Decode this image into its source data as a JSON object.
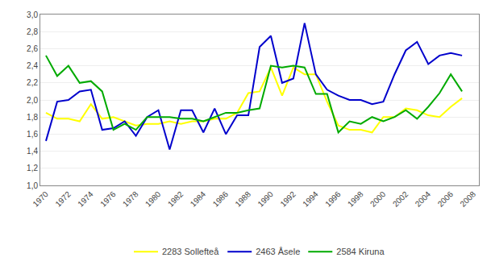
{
  "chart_data": {
    "type": "line",
    "x": [
      1970,
      1971,
      1972,
      1973,
      1974,
      1975,
      1976,
      1977,
      1978,
      1979,
      1980,
      1981,
      1982,
      1983,
      1984,
      1985,
      1986,
      1987,
      1988,
      1989,
      1990,
      1991,
      1992,
      1993,
      1994,
      1995,
      1996,
      1997,
      1998,
      1999,
      2000,
      2001,
      2002,
      2003,
      2004,
      2005,
      2006,
      2007
    ],
    "series": [
      {
        "name": "2283 Sollefteå",
        "color": "#ffff00",
        "values": [
          1.85,
          1.78,
          1.78,
          1.75,
          1.95,
          1.78,
          1.8,
          1.75,
          1.7,
          1.72,
          1.72,
          1.75,
          1.72,
          1.75,
          1.75,
          1.78,
          1.78,
          1.85,
          2.08,
          2.1,
          2.38,
          2.05,
          2.38,
          2.3,
          2.3,
          1.98,
          1.7,
          1.65,
          1.65,
          1.62,
          1.8,
          1.8,
          1.9,
          1.88,
          1.82,
          1.8,
          1.92,
          2.02
        ]
      },
      {
        "name": "2463 Åsele",
        "color": "#0000cc",
        "values": [
          1.52,
          1.98,
          2.0,
          2.1,
          2.12,
          1.65,
          1.67,
          1.75,
          1.58,
          1.8,
          1.88,
          1.42,
          1.88,
          1.88,
          1.62,
          1.9,
          1.6,
          1.82,
          1.82,
          2.62,
          2.75,
          2.2,
          2.25,
          2.9,
          2.3,
          2.12,
          2.05,
          2.0,
          2.0,
          1.95,
          1.98,
          2.3,
          2.58,
          2.68,
          2.42,
          2.52,
          2.55,
          2.52
        ]
      },
      {
        "name": "2584 Kiruna",
        "color": "#00aa00",
        "values": [
          2.52,
          2.28,
          2.4,
          2.2,
          2.22,
          2.1,
          1.65,
          1.72,
          1.65,
          1.8,
          1.8,
          1.8,
          1.78,
          1.78,
          1.75,
          1.8,
          1.85,
          1.85,
          1.88,
          1.9,
          2.4,
          2.38,
          2.4,
          2.38,
          2.07,
          2.07,
          1.62,
          1.75,
          1.72,
          1.8,
          1.75,
          1.8,
          1.88,
          1.78,
          1.92,
          2.08,
          2.3,
          2.1
        ]
      }
    ],
    "xlim": [
      1969.5,
      2008.5
    ],
    "xticks": [
      1970,
      1972,
      1974,
      1976,
      1978,
      1980,
      1982,
      1984,
      1986,
      1988,
      1990,
      1992,
      1994,
      1996,
      1998,
      2000,
      2002,
      2004,
      2006,
      2008
    ],
    "ylim": [
      1.0,
      3.0
    ],
    "yticks": [
      {
        "value": 1.0,
        "label": "1,0"
      },
      {
        "value": 1.2,
        "label": "1,2"
      },
      {
        "value": 1.4,
        "label": "1,4"
      },
      {
        "value": 1.6,
        "label": "1,6"
      },
      {
        "value": 1.8,
        "label": "1,8"
      },
      {
        "value": 2.0,
        "label": "2,0"
      },
      {
        "value": 2.2,
        "label": "2,2"
      },
      {
        "value": 2.4,
        "label": "2,4"
      },
      {
        "value": 2.6,
        "label": "2,6"
      },
      {
        "value": 2.8,
        "label": "2,8"
      },
      {
        "value": 3.0,
        "label": "3,0"
      }
    ],
    "grid": true,
    "legend": "bottom"
  }
}
